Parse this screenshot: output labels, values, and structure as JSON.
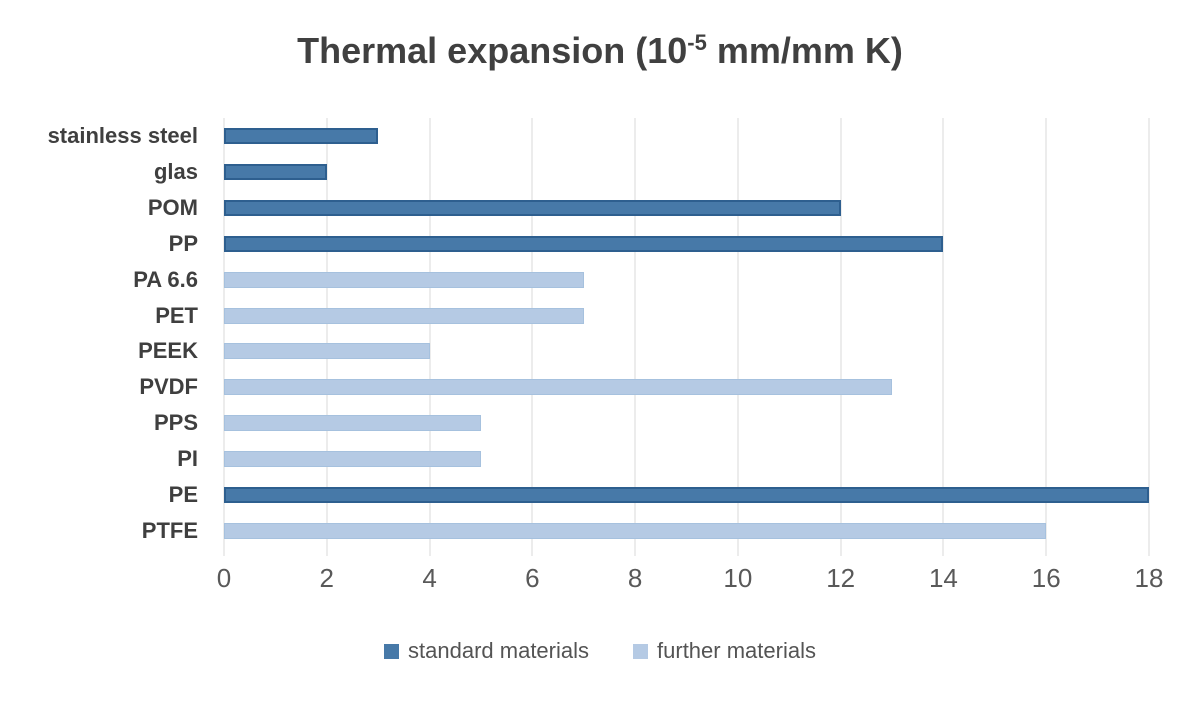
{
  "title": {
    "prefix": "Thermal expansion (10",
    "superscript": "-5",
    "suffix": " mm/mm K)",
    "full": "Thermal expansion (10^-5 mm/mm K)",
    "color": "#404040"
  },
  "chart_data": {
    "type": "bar",
    "orientation": "horizontal",
    "title": "Thermal expansion (10^-5 mm/mm K)",
    "xlabel": "",
    "ylabel": "",
    "xlim": [
      0,
      18
    ],
    "xticks": [
      0,
      2,
      4,
      6,
      8,
      10,
      12,
      14,
      16,
      18
    ],
    "grid": true,
    "legend_position": "bottom",
    "categories": [
      "stainless steel",
      "glas",
      "POM",
      "PP",
      "PA 6.6",
      "PET",
      "PEEK",
      "PVDF",
      "PPS",
      "PI",
      "PE",
      "PTFE"
    ],
    "bars": [
      {
        "label": "stainless steel",
        "value": 3,
        "series": "standard materials"
      },
      {
        "label": "glas",
        "value": 2,
        "series": "standard materials"
      },
      {
        "label": "POM",
        "value": 12,
        "series": "standard materials"
      },
      {
        "label": "PP",
        "value": 14,
        "series": "standard materials"
      },
      {
        "label": "PA 6.6",
        "value": 7,
        "series": "further materials"
      },
      {
        "label": "PET",
        "value": 7,
        "series": "further materials"
      },
      {
        "label": "PEEK",
        "value": 4,
        "series": "further materials"
      },
      {
        "label": "PVDF",
        "value": 13,
        "series": "further materials"
      },
      {
        "label": "PPS",
        "value": 5,
        "series": "further materials"
      },
      {
        "label": "PI",
        "value": 5,
        "series": "further materials"
      },
      {
        "label": "PE",
        "value": 18,
        "series": "standard materials"
      },
      {
        "label": "PTFE",
        "value": 16,
        "series": "further materials"
      }
    ],
    "series": [
      {
        "name": "standard materials",
        "color": "#4779A8",
        "border_color": "#2E5F8F"
      },
      {
        "name": "further materials",
        "color": "#B5CAE4",
        "border_color": "#A6C1DE"
      }
    ]
  },
  "legend": {
    "items": [
      {
        "label": "standard materials",
        "color": "#4779A8"
      },
      {
        "label": "further materials",
        "color": "#B5CAE4"
      }
    ]
  },
  "styles": {
    "gridline_color": "#D9D9D9",
    "tick_label_color": "#595959",
    "category_label_color": "#3F3F3F",
    "background": "#FFFFFF"
  }
}
